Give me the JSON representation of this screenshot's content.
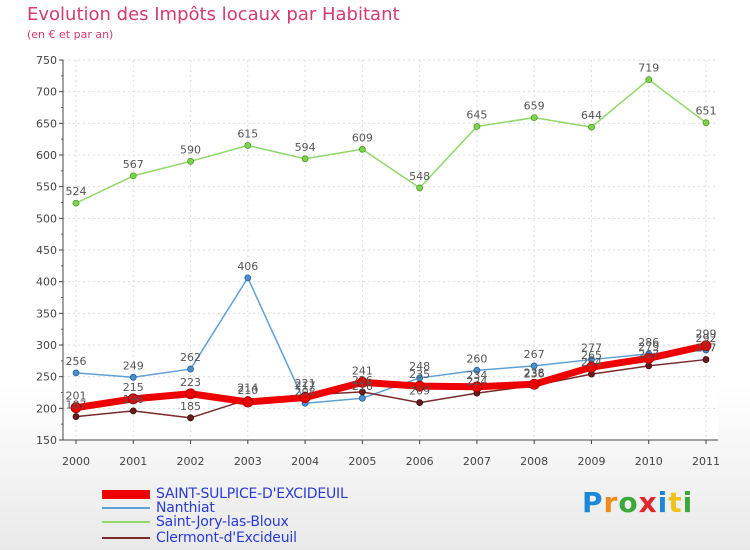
{
  "title": "Evolution des Impôts locaux par Habitant",
  "subtitle": "(en € et par an)",
  "logo": {
    "text": "Proxiti",
    "colors": [
      "#1e88d6",
      "#f08a1c",
      "#3aa83a",
      "#e0262f",
      "#1e88d6",
      "#f2c21b",
      "#3aa83a"
    ]
  },
  "chart_data": {
    "type": "line",
    "title": "Evolution des Impôts locaux par Habitant",
    "subtitle": "(en € et par an)",
    "xlabel": "",
    "ylabel": "",
    "ylim": [
      150,
      750
    ],
    "yticks": [
      150,
      200,
      250,
      300,
      350,
      400,
      450,
      500,
      550,
      600,
      650,
      700,
      750
    ],
    "categories": [
      "2000",
      "2001",
      "2002",
      "2003",
      "2004",
      "2005",
      "2006",
      "2007",
      "2008",
      "2009",
      "2010",
      "2011"
    ],
    "grid": true,
    "series": [
      {
        "name": "SAINT-SULPICE-D'EXCIDEUIL",
        "color": "#ee0000",
        "values": [
          201,
          215,
          223,
          210,
          217,
          241,
          235,
          234,
          238,
          265,
          279,
          299
        ]
      },
      {
        "name": "Nanthiat",
        "color": "#5fa0d8",
        "values": [
          256,
          249,
          262,
          406,
          208,
          216,
          248,
          260,
          267,
          277,
          286,
          292
        ]
      },
      {
        "name": "Saint-Jory-las-Bloux",
        "color": "#8fd86a",
        "values": [
          524,
          567,
          590,
          615,
          594,
          609,
          548,
          645,
          659,
          644,
          719,
          651
        ]
      },
      {
        "name": "Clermont-d'Excideuil",
        "color": "#7a2a2a",
        "values": [
          187,
          196,
          185,
          214,
          221,
          226,
          209,
          224,
          236,
          254,
          267,
          277
        ]
      }
    ]
  }
}
